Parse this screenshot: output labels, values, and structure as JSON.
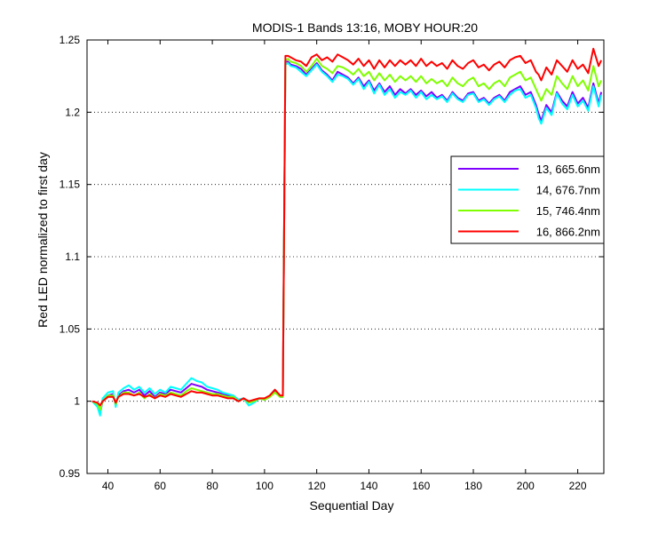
{
  "chart_data": {
    "type": "line",
    "title": "MODIS-1 Bands 13:16, MOBY HOUR:20",
    "xlabel": "Sequential Day",
    "ylabel": "Red LED normalized to first day",
    "xlim": [
      32,
      230
    ],
    "ylim": [
      0.95,
      1.25
    ],
    "xticks": [
      40,
      60,
      80,
      100,
      120,
      140,
      160,
      180,
      200,
      220
    ],
    "yticks": [
      0.95,
      1.0,
      1.05,
      1.1,
      1.15,
      1.2,
      1.25
    ],
    "ytick_labels": [
      "0.95",
      "1",
      "1.05",
      "1.1",
      "1.15",
      "1.2",
      "1.25"
    ],
    "grid": "horizontal dotted",
    "legend_position": "right",
    "series": [
      {
        "name": "13, 665.6nm",
        "color": "#7f00ff",
        "x": [
          34,
          36,
          37,
          38,
          40,
          42,
          43,
          44,
          46,
          48,
          50,
          52,
          54,
          56,
          58,
          60,
          62,
          64,
          66,
          68,
          70,
          72,
          74,
          76,
          78,
          80,
          82,
          84,
          86,
          88,
          90,
          92,
          94,
          96,
          98,
          100,
          102,
          104,
          106,
          107,
          108,
          109,
          110,
          112,
          114,
          116,
          118,
          120,
          122,
          124,
          126,
          128,
          130,
          132,
          134,
          136,
          138,
          140,
          142,
          144,
          146,
          148,
          150,
          152,
          154,
          156,
          158,
          160,
          162,
          164,
          166,
          168,
          170,
          172,
          174,
          176,
          178,
          180,
          182,
          184,
          186,
          188,
          190,
          192,
          194,
          196,
          198,
          200,
          202,
          204,
          205,
          206,
          208,
          210,
          212,
          214,
          216,
          218,
          220,
          222,
          224,
          226,
          228,
          229
        ],
        "y": [
          1.0,
          0.998,
          0.992,
          1.0,
          1.004,
          1.005,
          0.998,
          1.004,
          1.007,
          1.008,
          1.006,
          1.008,
          1.004,
          1.007,
          1.003,
          1.006,
          1.005,
          1.008,
          1.007,
          1.006,
          1.009,
          1.012,
          1.011,
          1.01,
          1.008,
          1.007,
          1.006,
          1.005,
          1.004,
          1.004,
          1.001,
          1.002,
          0.999,
          1.0,
          1.002,
          1.001,
          1.003,
          1.007,
          1.003,
          1.003,
          1.235,
          1.235,
          1.233,
          1.232,
          1.23,
          1.226,
          1.23,
          1.234,
          1.229,
          1.226,
          1.222,
          1.228,
          1.226,
          1.224,
          1.22,
          1.224,
          1.218,
          1.222,
          1.215,
          1.22,
          1.214,
          1.218,
          1.212,
          1.216,
          1.213,
          1.216,
          1.212,
          1.215,
          1.211,
          1.214,
          1.21,
          1.212,
          1.208,
          1.214,
          1.21,
          1.208,
          1.213,
          1.214,
          1.208,
          1.21,
          1.206,
          1.21,
          1.212,
          1.208,
          1.214,
          1.216,
          1.218,
          1.212,
          1.214,
          1.205,
          1.199,
          1.194,
          1.205,
          1.2,
          1.214,
          1.208,
          1.204,
          1.214,
          1.206,
          1.21,
          1.203,
          1.22,
          1.206,
          1.214
        ]
      },
      {
        "name": "14, 676.7nm",
        "color": "#00ffff",
        "x": [
          34,
          36,
          37,
          38,
          40,
          42,
          43,
          44,
          46,
          48,
          50,
          52,
          54,
          56,
          58,
          60,
          62,
          64,
          66,
          68,
          70,
          72,
          74,
          76,
          78,
          80,
          82,
          84,
          86,
          88,
          90,
          92,
          94,
          96,
          98,
          100,
          102,
          104,
          106,
          107,
          108,
          109,
          110,
          112,
          114,
          116,
          118,
          120,
          122,
          124,
          126,
          128,
          130,
          132,
          134,
          136,
          138,
          140,
          142,
          144,
          146,
          148,
          150,
          152,
          154,
          156,
          158,
          160,
          162,
          164,
          166,
          168,
          170,
          172,
          174,
          176,
          178,
          180,
          182,
          184,
          186,
          188,
          190,
          192,
          194,
          196,
          198,
          200,
          202,
          204,
          205,
          206,
          208,
          210,
          212,
          214,
          216,
          218,
          220,
          222,
          224,
          226,
          228,
          229
        ],
        "y": [
          1.0,
          0.996,
          0.99,
          1.002,
          1.006,
          1.007,
          0.996,
          1.006,
          1.009,
          1.011,
          1.008,
          1.01,
          1.006,
          1.009,
          1.005,
          1.008,
          1.006,
          1.01,
          1.009,
          1.008,
          1.012,
          1.016,
          1.014,
          1.013,
          1.01,
          1.009,
          1.008,
          1.006,
          1.005,
          1.004,
          1.001,
          1.002,
          0.997,
          0.999,
          1.002,
          1.001,
          1.004,
          1.008,
          1.003,
          1.003,
          1.233,
          1.234,
          1.232,
          1.231,
          1.228,
          1.225,
          1.229,
          1.233,
          1.228,
          1.225,
          1.221,
          1.226,
          1.225,
          1.223,
          1.219,
          1.223,
          1.216,
          1.221,
          1.213,
          1.219,
          1.212,
          1.216,
          1.21,
          1.214,
          1.212,
          1.215,
          1.21,
          1.214,
          1.209,
          1.212,
          1.209,
          1.211,
          1.207,
          1.213,
          1.209,
          1.207,
          1.212,
          1.213,
          1.207,
          1.209,
          1.205,
          1.209,
          1.211,
          1.207,
          1.212,
          1.215,
          1.216,
          1.21,
          1.212,
          1.203,
          1.196,
          1.192,
          1.203,
          1.198,
          1.213,
          1.206,
          1.202,
          1.212,
          1.204,
          1.208,
          1.201,
          1.218,
          1.204,
          1.212
        ]
      },
      {
        "name": "15, 746.4nm",
        "color": "#7fff00",
        "x": [
          34,
          36,
          37,
          38,
          40,
          42,
          43,
          44,
          46,
          48,
          50,
          52,
          54,
          56,
          58,
          60,
          62,
          64,
          66,
          68,
          70,
          72,
          74,
          76,
          78,
          80,
          82,
          84,
          86,
          88,
          90,
          92,
          94,
          96,
          98,
          100,
          102,
          104,
          106,
          107,
          108,
          109,
          110,
          112,
          114,
          116,
          118,
          120,
          122,
          124,
          126,
          128,
          130,
          132,
          134,
          136,
          138,
          140,
          142,
          144,
          146,
          148,
          150,
          152,
          154,
          156,
          158,
          160,
          162,
          164,
          166,
          168,
          170,
          172,
          174,
          176,
          178,
          180,
          182,
          184,
          186,
          188,
          190,
          192,
          194,
          196,
          198,
          200,
          202,
          204,
          205,
          206,
          208,
          210,
          212,
          214,
          216,
          218,
          220,
          222,
          224,
          226,
          228,
          229
        ],
        "y": [
          1.0,
          0.998,
          0.994,
          1.0,
          1.004,
          1.004,
          0.998,
          1.003,
          1.006,
          1.006,
          1.004,
          1.006,
          1.002,
          1.005,
          1.002,
          1.005,
          1.004,
          1.006,
          1.005,
          1.004,
          1.007,
          1.009,
          1.008,
          1.007,
          1.006,
          1.005,
          1.005,
          1.004,
          1.003,
          1.003,
          1.0,
          1.002,
          0.999,
          1.0,
          1.002,
          1.001,
          1.003,
          1.006,
          1.003,
          1.003,
          1.236,
          1.237,
          1.235,
          1.234,
          1.232,
          1.228,
          1.232,
          1.237,
          1.232,
          1.23,
          1.227,
          1.232,
          1.231,
          1.229,
          1.226,
          1.23,
          1.225,
          1.228,
          1.222,
          1.227,
          1.222,
          1.226,
          1.221,
          1.225,
          1.222,
          1.225,
          1.221,
          1.225,
          1.22,
          1.223,
          1.22,
          1.222,
          1.218,
          1.224,
          1.22,
          1.218,
          1.222,
          1.224,
          1.218,
          1.22,
          1.216,
          1.22,
          1.222,
          1.218,
          1.224,
          1.226,
          1.228,
          1.222,
          1.224,
          1.216,
          1.212,
          1.208,
          1.216,
          1.212,
          1.225,
          1.22,
          1.216,
          1.225,
          1.218,
          1.222,
          1.215,
          1.232,
          1.218,
          1.222
        ]
      },
      {
        "name": "16, 866.2nm",
        "color": "#ff0000",
        "x": [
          34,
          36,
          37,
          38,
          40,
          42,
          43,
          44,
          46,
          48,
          50,
          52,
          54,
          56,
          58,
          60,
          62,
          64,
          66,
          68,
          70,
          72,
          74,
          76,
          78,
          80,
          82,
          84,
          86,
          88,
          90,
          92,
          94,
          96,
          98,
          100,
          102,
          104,
          106,
          107,
          108,
          109,
          110,
          112,
          114,
          116,
          118,
          120,
          122,
          124,
          126,
          128,
          130,
          132,
          134,
          136,
          138,
          140,
          142,
          144,
          146,
          148,
          150,
          152,
          154,
          156,
          158,
          160,
          162,
          164,
          166,
          168,
          170,
          172,
          174,
          176,
          178,
          180,
          182,
          184,
          186,
          188,
          190,
          192,
          194,
          196,
          198,
          200,
          202,
          204,
          205,
          206,
          208,
          210,
          212,
          214,
          216,
          218,
          220,
          222,
          224,
          226,
          228,
          229
        ],
        "y": [
          1.0,
          0.999,
          0.997,
          1.0,
          1.003,
          1.003,
          0.999,
          1.003,
          1.005,
          1.005,
          1.004,
          1.005,
          1.003,
          1.004,
          1.002,
          1.004,
          1.003,
          1.005,
          1.004,
          1.003,
          1.005,
          1.007,
          1.006,
          1.006,
          1.005,
          1.004,
          1.004,
          1.003,
          1.002,
          1.002,
          1.0,
          1.002,
          1.0,
          1.001,
          1.002,
          1.002,
          1.004,
          1.008,
          1.004,
          1.004,
          1.239,
          1.239,
          1.238,
          1.236,
          1.235,
          1.232,
          1.238,
          1.24,
          1.236,
          1.238,
          1.235,
          1.24,
          1.238,
          1.236,
          1.233,
          1.237,
          1.232,
          1.236,
          1.23,
          1.236,
          1.231,
          1.236,
          1.232,
          1.236,
          1.233,
          1.236,
          1.232,
          1.237,
          1.232,
          1.235,
          1.232,
          1.234,
          1.23,
          1.236,
          1.232,
          1.23,
          1.234,
          1.236,
          1.231,
          1.233,
          1.229,
          1.233,
          1.235,
          1.231,
          1.236,
          1.238,
          1.239,
          1.234,
          1.236,
          1.228,
          1.226,
          1.222,
          1.231,
          1.226,
          1.236,
          1.232,
          1.228,
          1.236,
          1.23,
          1.233,
          1.227,
          1.244,
          1.232,
          1.236
        ]
      }
    ]
  }
}
